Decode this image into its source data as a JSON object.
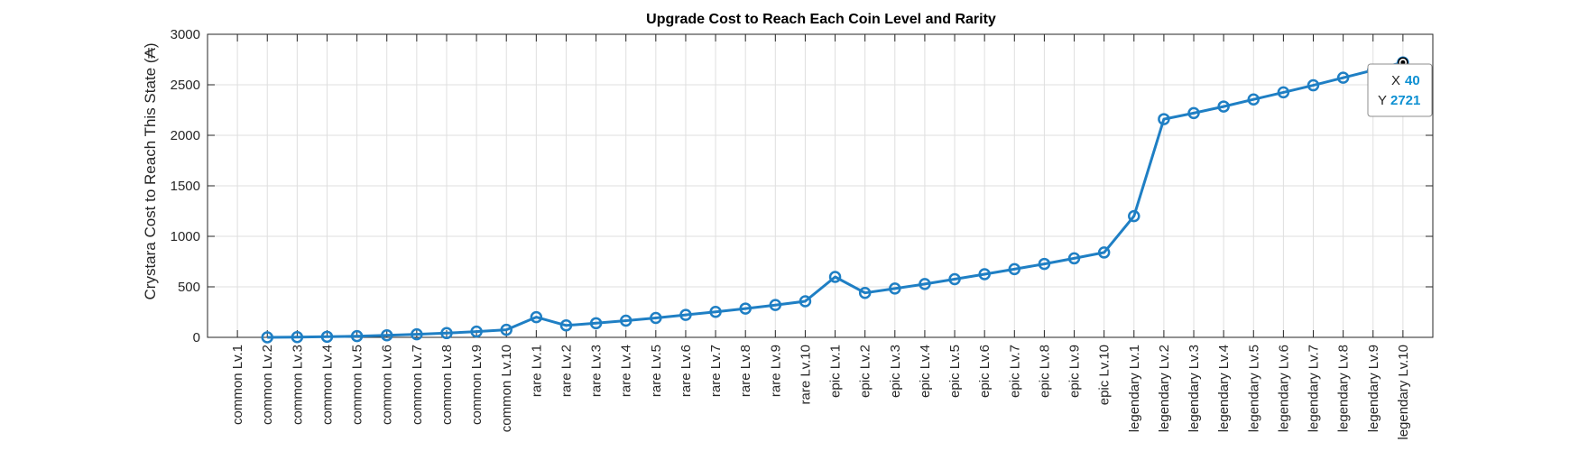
{
  "chart_data": {
    "type": "line",
    "title": "Upgrade Cost to Reach Each Coin Level and Rarity",
    "xlabel": "",
    "ylabel": "Crystara Cost to Reach This State (₳)",
    "ylim": [
      0,
      3000
    ],
    "yticks": [
      0,
      500,
      1000,
      1500,
      2000,
      2500,
      3000
    ],
    "grid": true,
    "categories": [
      "common Lv.1",
      "common Lv.2",
      "common Lv.3",
      "common Lv.4",
      "common Lv.5",
      "common Lv.6",
      "common Lv.7",
      "common Lv.8",
      "common Lv.9",
      "common Lv.10",
      "rare Lv.1",
      "rare Lv.2",
      "rare Lv.3",
      "rare Lv.4",
      "rare Lv.5",
      "rare Lv.6",
      "rare Lv.7",
      "rare Lv.8",
      "rare Lv.9",
      "rare Lv.10",
      "epic Lv.1",
      "epic Lv.2",
      "epic Lv.3",
      "epic Lv.4",
      "epic Lv.5",
      "epic Lv.6",
      "epic Lv.7",
      "epic Lv.8",
      "epic Lv.9",
      "epic Lv.10",
      "legendary Lv.1",
      "legendary Lv.2",
      "legendary Lv.3",
      "legendary Lv.4",
      "legendary Lv.5",
      "legendary Lv.6",
      "legendary Lv.7",
      "legendary Lv.8",
      "legendary Lv.9",
      "legendary Lv.10"
    ],
    "series": [
      {
        "color": "#1f7fc4",
        "values": [
          null,
          0,
          2,
          6,
          12,
          20,
          30,
          42,
          57,
          75,
          200,
          118,
          140,
          165,
          192,
          222,
          252,
          285,
          320,
          357,
          598,
          440,
          483,
          528,
          576,
          625,
          675,
          727,
          782,
          840,
          1200,
          2160,
          2220,
          2285,
          2355,
          2425,
          2495,
          2570,
          2645,
          2721
        ]
      }
    ],
    "datatip": {
      "x_label": "X",
      "x_value": "40",
      "y_label": "Y",
      "y_value": "2721"
    }
  }
}
